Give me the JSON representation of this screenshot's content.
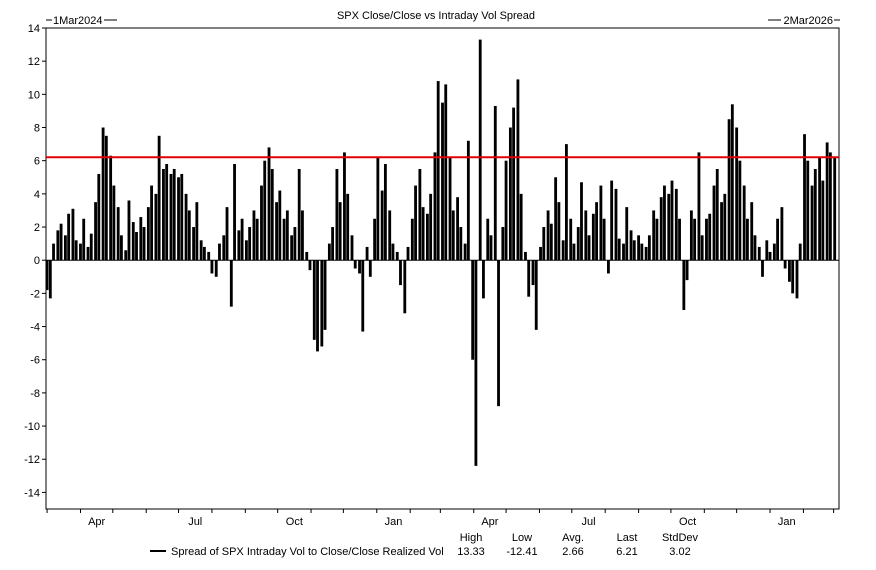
{
  "chart_data": {
    "type": "bar",
    "title": "SPX Close/Close vs Intraday Vol Spread",
    "start_label": "1Mar2024",
    "end_label": "2Mar2026",
    "ylim": [
      -15,
      14
    ],
    "yticks": [
      14,
      12,
      10,
      8,
      6,
      4,
      2,
      0,
      -2,
      -4,
      -6,
      -8,
      -10,
      -12,
      -14
    ],
    "xticks": [
      {
        "label": "Apr",
        "month": 1
      },
      {
        "label": "Jul",
        "month": 4
      },
      {
        "label": "Oct",
        "month": 7
      },
      {
        "label": "Jan",
        "month": 10
      },
      {
        "label": "Apr",
        "month": 13
      },
      {
        "label": "Jul",
        "month": 16
      },
      {
        "label": "Oct",
        "month": 19
      },
      {
        "label": "Jan",
        "month": 22
      }
    ],
    "grid": false,
    "reference_line": {
      "value": 6.21,
      "color": "#e00000"
    },
    "series": [
      {
        "name": "Spread of SPX Intraday Vol to Close/Close Realized Vol",
        "color": "#000000",
        "points": [
          [
            "2024-03-01",
            -1.8
          ],
          [
            "2024-03-04",
            -2.3
          ],
          [
            "2024-03-07",
            1.0
          ],
          [
            "2024-03-11",
            1.8
          ],
          [
            "2024-03-14",
            2.2
          ],
          [
            "2024-03-18",
            1.5
          ],
          [
            "2024-03-21",
            2.8
          ],
          [
            "2024-03-25",
            3.1
          ],
          [
            "2024-03-28",
            1.2
          ],
          [
            "2024-04-01",
            1.0
          ],
          [
            "2024-04-04",
            2.5
          ],
          [
            "2024-04-08",
            0.8
          ],
          [
            "2024-04-11",
            1.6
          ],
          [
            "2024-04-15",
            3.5
          ],
          [
            "2024-04-18",
            5.2
          ],
          [
            "2024-04-22",
            8.0
          ],
          [
            "2024-04-25",
            7.5
          ],
          [
            "2024-04-29",
            6.3
          ],
          [
            "2024-05-02",
            4.5
          ],
          [
            "2024-05-06",
            3.2
          ],
          [
            "2024-05-09",
            1.5
          ],
          [
            "2024-05-13",
            0.6
          ],
          [
            "2024-05-16",
            3.6
          ],
          [
            "2024-05-20",
            2.3
          ],
          [
            "2024-05-23",
            1.7
          ],
          [
            "2024-05-27",
            2.6
          ],
          [
            "2024-05-30",
            2.0
          ],
          [
            "2024-06-03",
            3.2
          ],
          [
            "2024-06-06",
            4.5
          ],
          [
            "2024-06-10",
            4.0
          ],
          [
            "2024-06-13",
            7.5
          ],
          [
            "2024-06-17",
            5.5
          ],
          [
            "2024-06-20",
            5.8
          ],
          [
            "2024-06-24",
            5.2
          ],
          [
            "2024-06-27",
            5.5
          ],
          [
            "2024-07-01",
            5.0
          ],
          [
            "2024-07-04",
            5.2
          ],
          [
            "2024-07-08",
            4.0
          ],
          [
            "2024-07-11",
            3.0
          ],
          [
            "2024-07-15",
            2.0
          ],
          [
            "2024-07-18",
            3.5
          ],
          [
            "2024-07-22",
            1.2
          ],
          [
            "2024-07-25",
            0.8
          ],
          [
            "2024-07-29",
            0.5
          ],
          [
            "2024-08-01",
            -0.8
          ],
          [
            "2024-08-05",
            -1.0
          ],
          [
            "2024-08-08",
            1.0
          ],
          [
            "2024-08-12",
            1.5
          ],
          [
            "2024-08-15",
            3.2
          ],
          [
            "2024-08-19",
            -2.8
          ],
          [
            "2024-08-22",
            5.8
          ],
          [
            "2024-08-26",
            1.8
          ],
          [
            "2024-08-29",
            2.5
          ],
          [
            "2024-09-02",
            1.2
          ],
          [
            "2024-09-05",
            2.0
          ],
          [
            "2024-09-09",
            3.0
          ],
          [
            "2024-09-12",
            2.5
          ],
          [
            "2024-09-16",
            4.5
          ],
          [
            "2024-09-19",
            6.0
          ],
          [
            "2024-09-23",
            6.8
          ],
          [
            "2024-09-26",
            5.5
          ],
          [
            "2024-09-30",
            3.5
          ],
          [
            "2024-10-03",
            4.2
          ],
          [
            "2024-10-07",
            2.5
          ],
          [
            "2024-10-10",
            3.0
          ],
          [
            "2024-10-14",
            1.5
          ],
          [
            "2024-10-17",
            2.0
          ],
          [
            "2024-10-21",
            5.5
          ],
          [
            "2024-10-24",
            3.0
          ],
          [
            "2024-10-28",
            0.5
          ],
          [
            "2024-10-31",
            -0.6
          ],
          [
            "2024-11-04",
            -4.8
          ],
          [
            "2024-11-07",
            -5.5
          ],
          [
            "2024-11-11",
            -5.2
          ],
          [
            "2024-11-14",
            -4.2
          ],
          [
            "2024-11-18",
            1.0
          ],
          [
            "2024-11-21",
            2.0
          ],
          [
            "2024-11-25",
            5.5
          ],
          [
            "2024-11-28",
            3.5
          ],
          [
            "2024-12-02",
            6.5
          ],
          [
            "2024-12-05",
            4.0
          ],
          [
            "2024-12-09",
            1.5
          ],
          [
            "2024-12-12",
            -0.5
          ],
          [
            "2024-12-16",
            -0.8
          ],
          [
            "2024-12-19",
            -4.3
          ],
          [
            "2024-12-23",
            0.8
          ],
          [
            "2024-12-26",
            -1.0
          ],
          [
            "2024-12-30",
            2.5
          ],
          [
            "2025-01-02",
            6.2
          ],
          [
            "2025-01-06",
            4.2
          ],
          [
            "2025-01-09",
            5.8
          ],
          [
            "2025-01-13",
            3.0
          ],
          [
            "2025-01-16",
            1.0
          ],
          [
            "2025-01-20",
            0.5
          ],
          [
            "2025-01-23",
            -1.5
          ],
          [
            "2025-01-27",
            -3.2
          ],
          [
            "2025-01-30",
            0.8
          ],
          [
            "2025-02-03",
            2.5
          ],
          [
            "2025-02-06",
            4.5
          ],
          [
            "2025-02-10",
            5.5
          ],
          [
            "2025-02-13",
            3.2
          ],
          [
            "2025-02-17",
            2.8
          ],
          [
            "2025-02-20",
            4.0
          ],
          [
            "2025-02-24",
            6.5
          ],
          [
            "2025-02-27",
            10.8
          ],
          [
            "2025-03-03",
            9.5
          ],
          [
            "2025-03-06",
            10.6
          ],
          [
            "2025-03-10",
            6.2
          ],
          [
            "2025-03-13",
            3.0
          ],
          [
            "2025-03-17",
            3.8
          ],
          [
            "2025-03-20",
            2.0
          ],
          [
            "2025-03-24",
            1.0
          ],
          [
            "2025-03-27",
            7.2
          ],
          [
            "2025-03-31",
            -6.0
          ],
          [
            "2025-04-03",
            -12.4
          ],
          [
            "2025-04-07",
            13.3
          ],
          [
            "2025-04-10",
            -2.3
          ],
          [
            "2025-04-14",
            2.5
          ],
          [
            "2025-04-17",
            1.5
          ],
          [
            "2025-04-21",
            9.3
          ],
          [
            "2025-04-24",
            -8.8
          ],
          [
            "2025-04-28",
            2.0
          ],
          [
            "2025-05-01",
            6.0
          ],
          [
            "2025-05-05",
            8.0
          ],
          [
            "2025-05-08",
            9.2
          ],
          [
            "2025-05-12",
            10.9
          ],
          [
            "2025-05-15",
            4.0
          ],
          [
            "2025-05-19",
            0.5
          ],
          [
            "2025-05-22",
            -2.2
          ],
          [
            "2025-05-26",
            -1.5
          ],
          [
            "2025-05-29",
            -4.2
          ],
          [
            "2025-06-02",
            0.8
          ],
          [
            "2025-06-05",
            2.0
          ],
          [
            "2025-06-09",
            3.0
          ],
          [
            "2025-06-12",
            2.2
          ],
          [
            "2025-06-16",
            5.0
          ],
          [
            "2025-06-19",
            3.5
          ],
          [
            "2025-06-23",
            1.2
          ],
          [
            "2025-06-26",
            7.0
          ],
          [
            "2025-06-30",
            2.5
          ],
          [
            "2025-07-03",
            1.0
          ],
          [
            "2025-07-07",
            2.0
          ],
          [
            "2025-07-10",
            4.7
          ],
          [
            "2025-07-14",
            3.0
          ],
          [
            "2025-07-17",
            1.5
          ],
          [
            "2025-07-21",
            2.8
          ],
          [
            "2025-07-24",
            3.5
          ],
          [
            "2025-07-28",
            4.5
          ],
          [
            "2025-07-31",
            2.5
          ],
          [
            "2025-08-04",
            -0.8
          ],
          [
            "2025-08-07",
            4.8
          ],
          [
            "2025-08-11",
            4.3
          ],
          [
            "2025-08-14",
            1.3
          ],
          [
            "2025-08-18",
            1.0
          ],
          [
            "2025-08-21",
            3.2
          ],
          [
            "2025-08-25",
            1.8
          ],
          [
            "2025-08-28",
            1.2
          ],
          [
            "2025-09-01",
            1.5
          ],
          [
            "2025-09-04",
            1.0
          ],
          [
            "2025-09-08",
            0.8
          ],
          [
            "2025-09-11",
            1.5
          ],
          [
            "2025-09-15",
            3.0
          ],
          [
            "2025-09-18",
            2.5
          ],
          [
            "2025-09-22",
            3.8
          ],
          [
            "2025-09-25",
            4.5
          ],
          [
            "2025-09-29",
            4.0
          ],
          [
            "2025-10-02",
            4.8
          ],
          [
            "2025-10-06",
            4.3
          ],
          [
            "2025-10-09",
            2.5
          ],
          [
            "2025-10-13",
            -3.0
          ],
          [
            "2025-10-16",
            -1.2
          ],
          [
            "2025-10-20",
            3.0
          ],
          [
            "2025-10-23",
            2.5
          ],
          [
            "2025-10-27",
            6.5
          ],
          [
            "2025-10-30",
            1.5
          ],
          [
            "2025-11-03",
            2.5
          ],
          [
            "2025-11-06",
            2.8
          ],
          [
            "2025-11-10",
            4.5
          ],
          [
            "2025-11-13",
            5.5
          ],
          [
            "2025-11-17",
            3.5
          ],
          [
            "2025-11-20",
            4.0
          ],
          [
            "2025-11-24",
            8.5
          ],
          [
            "2025-11-27",
            9.4
          ],
          [
            "2025-12-01",
            8.0
          ],
          [
            "2025-12-04",
            6.0
          ],
          [
            "2025-12-08",
            4.5
          ],
          [
            "2025-12-11",
            2.5
          ],
          [
            "2025-12-15",
            3.5
          ],
          [
            "2025-12-18",
            1.5
          ],
          [
            "2025-12-22",
            0.8
          ],
          [
            "2025-12-25",
            -1.0
          ],
          [
            "2025-12-29",
            1.2
          ],
          [
            "2026-01-01",
            0.5
          ],
          [
            "2026-01-05",
            1.0
          ],
          [
            "2026-01-08",
            2.5
          ],
          [
            "2026-01-12",
            3.2
          ],
          [
            "2026-01-15",
            -0.5
          ],
          [
            "2026-01-19",
            -1.3
          ],
          [
            "2026-01-22",
            -2.0
          ],
          [
            "2026-01-26",
            -2.3
          ],
          [
            "2026-01-29",
            1.0
          ],
          [
            "2026-02-02",
            7.6
          ],
          [
            "2026-02-05",
            6.0
          ],
          [
            "2026-02-09",
            4.5
          ],
          [
            "2026-02-12",
            5.5
          ],
          [
            "2026-02-16",
            6.2
          ],
          [
            "2026-02-19",
            4.8
          ],
          [
            "2026-02-23",
            7.1
          ],
          [
            "2026-02-26",
            6.5
          ],
          [
            "2026-03-02",
            6.21
          ]
        ]
      }
    ],
    "stats": {
      "headers": [
        "High",
        "Low",
        "Avg.",
        "Last",
        "StdDev"
      ],
      "values": [
        "13.33",
        "-12.41",
        "2.66",
        "6.21",
        "3.02"
      ]
    }
  }
}
